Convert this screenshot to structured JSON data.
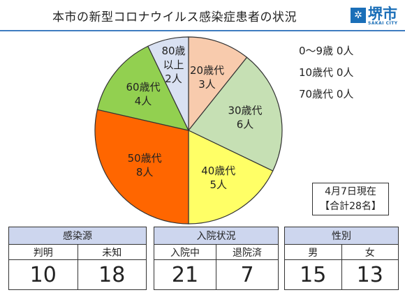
{
  "header": {
    "title": "本市の新型コロナウイルス感染症患者の状況",
    "logo_text": "堺市",
    "logo_sub": "SAKAI CITY",
    "logo_mark_glyph": "✲"
  },
  "chart_data": {
    "type": "pie",
    "slices": [
      {
        "label": "20歳代",
        "value_label": "3人",
        "value": 3,
        "color": "#f8cbad"
      },
      {
        "label": "30歳代",
        "value_label": "6人",
        "value": 6,
        "color": "#c6e0b4"
      },
      {
        "label": "40歳代",
        "value_label": "5人",
        "value": 5,
        "color": "#ffff66"
      },
      {
        "label": "50歳代",
        "value_label": "8人",
        "value": 8,
        "color": "#ff6600"
      },
      {
        "label": "60歳代",
        "value_label": "4人",
        "value": 4,
        "color": "#92d050"
      },
      {
        "label": "80歳以上",
        "value_label": "2人",
        "value": 2,
        "color": "#d9e1f2"
      }
    ],
    "zero_groups": [
      {
        "label": "0〜9歳",
        "value_label": "0人"
      },
      {
        "label": "10歳代",
        "value_label": "0人"
      },
      {
        "label": "70歳代",
        "value_label": "0人"
      }
    ],
    "as_of": "4月7日現在",
    "total_label": "【合計28名】"
  },
  "stats": {
    "source": {
      "header": "感染源",
      "labels": [
        "判明",
        "未知"
      ],
      "values": [
        "10",
        "18"
      ]
    },
    "hospital": {
      "header": "入院状況",
      "labels": [
        "入院中",
        "退院済"
      ],
      "values": [
        "21",
        "7"
      ]
    },
    "gender": {
      "header": "性別",
      "labels": [
        "男",
        "女"
      ],
      "values": [
        "15",
        "13"
      ]
    }
  }
}
